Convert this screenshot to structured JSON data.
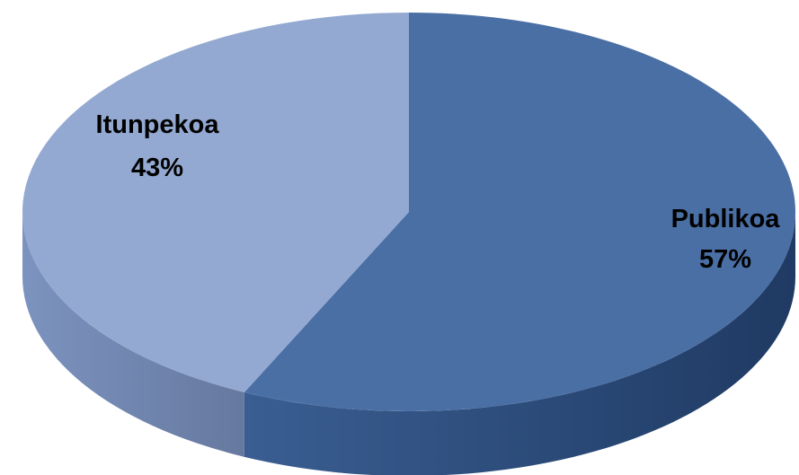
{
  "chart_data": {
    "type": "pie",
    "style": "3d",
    "slices": [
      {
        "label": "Publikoa",
        "value": 57,
        "value_label": "57%",
        "color": "#4A6FA5",
        "side_color": "#2C4A78"
      },
      {
        "label": "Itunpekoa",
        "value": 43,
        "value_label": "43%",
        "color": "#93A9D1",
        "side_color": "#6B82AD"
      }
    ],
    "title": "",
    "legend": "none"
  }
}
